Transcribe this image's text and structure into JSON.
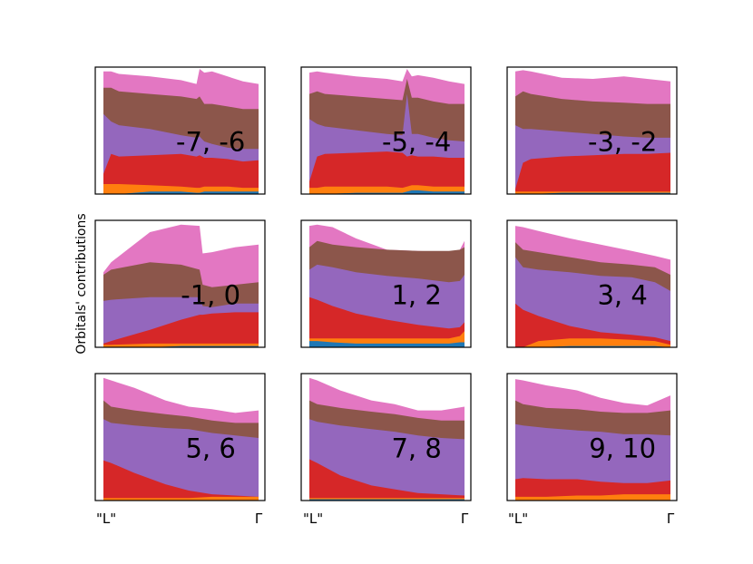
{
  "figure": {
    "ylabel": "Orbitals' contributions",
    "xtick_start": "\"L\"",
    "xtick_end": "Γ"
  },
  "colors": {
    "s": "#1f77b4",
    "p": "#ff7f0e",
    "d": "#d62728",
    "layer4": "#9467bd",
    "layer5": "#8c564b",
    "layer6": "#e377c2"
  },
  "chart_data": [
    {
      "type": "area",
      "label": "-7, -6",
      "x": [
        0,
        0.05,
        0.1,
        0.3,
        0.5,
        0.6,
        0.62,
        0.65,
        0.7,
        0.8,
        0.9,
        1.0
      ],
      "layers": {
        "blue": [
          0.0,
          0.0,
          0.0,
          0.02,
          0.02,
          0.01,
          0.01,
          0.02,
          0.02,
          0.02,
          0.02,
          0.02
        ],
        "orange": [
          0.08,
          0.08,
          0.08,
          0.07,
          0.06,
          0.05,
          0.05,
          0.06,
          0.06,
          0.06,
          0.05,
          0.05
        ],
        "red": [
          0.16,
          0.32,
          0.3,
          0.31,
          0.32,
          0.3,
          0.31,
          0.29,
          0.29,
          0.28,
          0.26,
          0.27
        ],
        "purple": [
          0.64,
          0.58,
          0.55,
          0.52,
          0.47,
          0.45,
          0.46,
          0.42,
          0.4,
          0.37,
          0.36,
          0.36
        ],
        "brown": [
          0.85,
          0.85,
          0.82,
          0.8,
          0.78,
          0.76,
          0.78,
          0.72,
          0.72,
          0.7,
          0.68,
          0.68
        ],
        "pink": [
          0.98,
          0.98,
          0.96,
          0.94,
          0.91,
          0.88,
          1.0,
          0.97,
          0.98,
          0.94,
          0.9,
          0.88
        ]
      }
    },
    {
      "type": "area",
      "label": "-5, -4",
      "x": [
        0,
        0.05,
        0.1,
        0.3,
        0.5,
        0.6,
        0.63,
        0.66,
        0.7,
        0.8,
        0.9,
        1.0
      ],
      "layers": {
        "blue": [
          0.0,
          0.0,
          0.0,
          0.01,
          0.01,
          0.01,
          0.02,
          0.03,
          0.03,
          0.02,
          0.02,
          0.02
        ],
        "orange": [
          0.05,
          0.05,
          0.06,
          0.06,
          0.06,
          0.05,
          0.06,
          0.07,
          0.07,
          0.06,
          0.06,
          0.06
        ],
        "red": [
          0.1,
          0.3,
          0.32,
          0.33,
          0.34,
          0.33,
          0.3,
          0.31,
          0.3,
          0.3,
          0.29,
          0.29
        ],
        "purple": [
          0.6,
          0.56,
          0.54,
          0.51,
          0.48,
          0.47,
          0.8,
          0.48,
          0.48,
          0.45,
          0.43,
          0.42
        ],
        "brown": [
          0.8,
          0.82,
          0.8,
          0.78,
          0.76,
          0.75,
          0.92,
          0.77,
          0.77,
          0.74,
          0.72,
          0.72
        ],
        "pink": [
          0.97,
          0.98,
          0.97,
          0.94,
          0.92,
          0.9,
          1.0,
          0.94,
          0.95,
          0.93,
          0.9,
          0.88
        ]
      }
    },
    {
      "type": "area",
      "label": "-3, -2",
      "x": [
        0,
        0.05,
        0.1,
        0.3,
        0.5,
        0.7,
        0.85,
        1.0
      ],
      "layers": {
        "blue": [
          0.0,
          0.0,
          0.0,
          0.01,
          0.01,
          0.01,
          0.01,
          0.01
        ],
        "orange": [
          0.02,
          0.02,
          0.02,
          0.02,
          0.02,
          0.02,
          0.02,
          0.02
        ],
        "red": [
          0.04,
          0.25,
          0.28,
          0.3,
          0.31,
          0.32,
          0.32,
          0.33
        ],
        "purple": [
          0.55,
          0.52,
          0.52,
          0.5,
          0.48,
          0.46,
          0.45,
          0.45
        ],
        "brown": [
          0.78,
          0.82,
          0.8,
          0.76,
          0.74,
          0.73,
          0.72,
          0.72
        ],
        "pink": [
          0.98,
          0.99,
          0.98,
          0.93,
          0.92,
          0.94,
          0.92,
          0.9
        ]
      }
    },
    {
      "type": "area",
      "label": "-1, 0",
      "x": [
        0,
        0.05,
        0.3,
        0.5,
        0.62,
        0.64,
        0.7,
        0.85,
        1.0
      ],
      "layers": {
        "blue": [
          0.0,
          0.0,
          0.0,
          0.01,
          0.01,
          0.01,
          0.01,
          0.01,
          0.01
        ],
        "orange": [
          0.02,
          0.02,
          0.03,
          0.03,
          0.03,
          0.03,
          0.03,
          0.03,
          0.03
        ],
        "red": [
          0.03,
          0.05,
          0.14,
          0.22,
          0.26,
          0.26,
          0.27,
          0.28,
          0.28
        ],
        "purple": [
          0.37,
          0.38,
          0.4,
          0.4,
          0.4,
          0.33,
          0.32,
          0.35,
          0.35
        ],
        "brown": [
          0.58,
          0.62,
          0.68,
          0.66,
          0.62,
          0.5,
          0.48,
          0.5,
          0.52
        ],
        "pink": [
          0.6,
          0.68,
          0.92,
          0.98,
          0.97,
          0.75,
          0.76,
          0.8,
          0.82
        ]
      }
    },
    {
      "type": "area",
      "label": "1, 2",
      "x": [
        0,
        0.05,
        0.15,
        0.3,
        0.5,
        0.7,
        0.9,
        0.97,
        1.0
      ],
      "layers": {
        "blue": [
          0.05,
          0.05,
          0.04,
          0.03,
          0.03,
          0.03,
          0.03,
          0.04,
          0.04
        ],
        "orange": [
          0.07,
          0.07,
          0.07,
          0.07,
          0.07,
          0.07,
          0.07,
          0.09,
          0.13
        ],
        "red": [
          0.4,
          0.38,
          0.33,
          0.27,
          0.22,
          0.18,
          0.15,
          0.16,
          0.2
        ],
        "purple": [
          0.62,
          0.66,
          0.64,
          0.6,
          0.57,
          0.55,
          0.52,
          0.53,
          0.58
        ],
        "brown": [
          0.8,
          0.85,
          0.82,
          0.8,
          0.78,
          0.77,
          0.77,
          0.78,
          0.8
        ],
        "pink": [
          0.97,
          0.98,
          0.96,
          0.87,
          0.78,
          0.77,
          0.76,
          0.78,
          0.85
        ]
      }
    },
    {
      "type": "area",
      "label": "3, 4",
      "x": [
        0,
        0.05,
        0.15,
        0.35,
        0.55,
        0.75,
        0.9,
        1.0
      ],
      "layers": {
        "blue": [
          0.0,
          0.0,
          0.0,
          0.01,
          0.01,
          0.01,
          0.01,
          0.0
        ],
        "orange": [
          0.0,
          0.0,
          0.05,
          0.07,
          0.07,
          0.06,
          0.05,
          0.02
        ],
        "red": [
          0.35,
          0.3,
          0.25,
          0.17,
          0.12,
          0.1,
          0.08,
          0.05
        ],
        "purple": [
          0.72,
          0.64,
          0.62,
          0.6,
          0.57,
          0.56,
          0.52,
          0.45
        ],
        "brown": [
          0.84,
          0.78,
          0.76,
          0.72,
          0.68,
          0.66,
          0.64,
          0.58
        ],
        "pink": [
          0.97,
          0.96,
          0.93,
          0.87,
          0.82,
          0.77,
          0.73,
          0.7
        ]
      }
    },
    {
      "type": "area",
      "label": "5, 6",
      "x": [
        0,
        0.05,
        0.2,
        0.4,
        0.55,
        0.7,
        0.85,
        1.0
      ],
      "layers": {
        "blue": [
          0.0,
          0.0,
          0.0,
          0.0,
          0.0,
          0.0,
          0.0,
          0.0
        ],
        "orange": [
          0.02,
          0.02,
          0.02,
          0.02,
          0.02,
          0.03,
          0.03,
          0.03
        ],
        "red": [
          0.32,
          0.3,
          0.22,
          0.13,
          0.08,
          0.05,
          0.04,
          0.03
        ],
        "purple": [
          0.65,
          0.62,
          0.6,
          0.58,
          0.57,
          0.54,
          0.52,
          0.5
        ],
        "brown": [
          0.8,
          0.75,
          0.72,
          0.69,
          0.67,
          0.64,
          0.62,
          0.62
        ],
        "pink": [
          0.98,
          0.96,
          0.9,
          0.8,
          0.75,
          0.73,
          0.7,
          0.72
        ]
      }
    },
    {
      "type": "area",
      "label": "7, 8",
      "x": [
        0,
        0.05,
        0.2,
        0.4,
        0.55,
        0.7,
        0.85,
        1.0
      ],
      "layers": {
        "blue": [
          0.01,
          0.01,
          0.01,
          0.01,
          0.01,
          0.01,
          0.01,
          0.01
        ],
        "orange": [
          0.02,
          0.02,
          0.02,
          0.02,
          0.02,
          0.02,
          0.02,
          0.02
        ],
        "red": [
          0.33,
          0.3,
          0.2,
          0.12,
          0.09,
          0.06,
          0.05,
          0.04
        ],
        "purple": [
          0.65,
          0.63,
          0.6,
          0.57,
          0.55,
          0.52,
          0.5,
          0.49
        ],
        "brown": [
          0.8,
          0.77,
          0.74,
          0.71,
          0.69,
          0.66,
          0.64,
          0.64
        ],
        "pink": [
          0.98,
          0.96,
          0.88,
          0.8,
          0.77,
          0.72,
          0.72,
          0.75
        ]
      }
    },
    {
      "type": "area",
      "label": "9, 10",
      "x": [
        0,
        0.05,
        0.2,
        0.4,
        0.55,
        0.7,
        0.85,
        1.0
      ],
      "layers": {
        "blue": [
          0.0,
          0.0,
          0.0,
          0.0,
          0.0,
          0.0,
          0.0,
          0.0
        ],
        "orange": [
          0.03,
          0.03,
          0.03,
          0.04,
          0.04,
          0.05,
          0.05,
          0.05
        ],
        "red": [
          0.17,
          0.18,
          0.17,
          0.17,
          0.15,
          0.14,
          0.14,
          0.16
        ],
        "purple": [
          0.61,
          0.6,
          0.58,
          0.56,
          0.55,
          0.53,
          0.53,
          0.52
        ],
        "brown": [
          0.8,
          0.77,
          0.74,
          0.73,
          0.71,
          0.7,
          0.7,
          0.72
        ],
        "pink": [
          0.97,
          0.96,
          0.92,
          0.88,
          0.82,
          0.78,
          0.76,
          0.84
        ]
      }
    }
  ]
}
